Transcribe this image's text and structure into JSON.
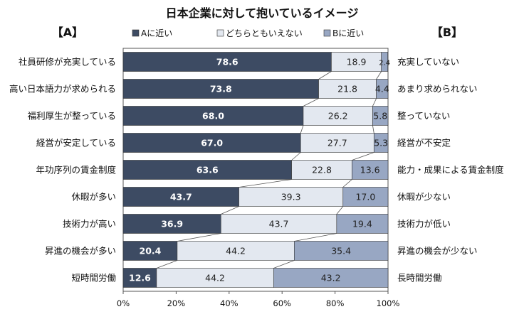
{
  "chart_data": {
    "type": "bar",
    "orientation": "horizontal",
    "stacked": true,
    "title": "日本企業に対して抱いているイメージ",
    "left_group_label": "【A】",
    "right_group_label": "【B】",
    "categories_left": [
      "社員研修が充実している",
      "高い日本語力が求められる",
      "福利厚生が整っている",
      "経営が安定している",
      "年功序列の賃金制度",
      "休暇が多い",
      "技術力が高い",
      "昇進の機会が多い",
      "短時間労働"
    ],
    "categories_right": [
      "充実していない",
      "あまり求められない",
      "整っていない",
      "経営が不安定",
      "能力・成果による賃金制度",
      "休暇が少ない",
      "技術力が低い",
      "昇進の機会が少ない",
      "長時間労働"
    ],
    "series": [
      {
        "name": "Aに近い",
        "color": "#3d4b63",
        "values": [
          78.6,
          73.8,
          68.0,
          67.0,
          63.6,
          43.7,
          36.9,
          20.4,
          12.6
        ]
      },
      {
        "name": "どちらともいえない",
        "color": "#e3e8f0",
        "values": [
          18.9,
          21.8,
          26.2,
          27.7,
          22.8,
          39.3,
          43.7,
          44.2,
          44.2
        ]
      },
      {
        "name": "Bに近い",
        "color": "#98a7c3",
        "values": [
          2.4,
          4.4,
          5.8,
          5.3,
          13.6,
          17.0,
          19.4,
          35.4,
          43.2
        ]
      }
    ],
    "value_labels": [
      [
        "78.6",
        "73.8",
        "68.0",
        "67.0",
        "63.6",
        "43.7",
        "36.9",
        "20.4",
        "12.6"
      ],
      [
        "18.9",
        "21.8",
        "26.2",
        "27.7",
        "22.8",
        "39.3",
        "43.7",
        "44.2",
        "44.2"
      ],
      [
        "2.4",
        "4.4",
        "5.8",
        "5.3",
        "13.6",
        "17.0",
        "19.4",
        "35.4",
        "43.2"
      ]
    ],
    "x_ticks": [
      "0%",
      "20%",
      "40%",
      "60%",
      "80%",
      "100%"
    ],
    "xlim": [
      0,
      100
    ],
    "legend_position": "top",
    "connector_lines": true
  }
}
